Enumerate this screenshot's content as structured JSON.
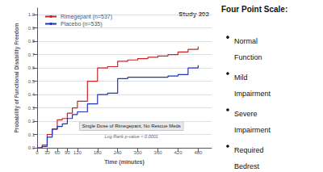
{
  "chart_data": {
    "type": "step",
    "xlabel": "Time (minutes)",
    "ylabel": "Probability of Functional Disability Freedom",
    "x": [
      0,
      15,
      30,
      45,
      60,
      75,
      90,
      105,
      120,
      150,
      180,
      210,
      240,
      270,
      300,
      330,
      360,
      390,
      420,
      450,
      480
    ],
    "series": [
      {
        "name": "Rimegepant (n=537)",
        "color": "#cc2222",
        "values": [
          0.0,
          0.02,
          0.1,
          0.14,
          0.21,
          0.22,
          0.26,
          0.3,
          0.35,
          0.5,
          0.6,
          0.61,
          0.65,
          0.66,
          0.67,
          0.68,
          0.69,
          0.7,
          0.72,
          0.74,
          0.76
        ]
      },
      {
        "name": "Placebo (n=535)",
        "color": "#2233bb",
        "values": [
          0.0,
          0.01,
          0.08,
          0.14,
          0.16,
          0.18,
          0.22,
          0.25,
          0.27,
          0.33,
          0.4,
          0.41,
          0.52,
          0.53,
          0.53,
          0.53,
          0.53,
          0.54,
          0.55,
          0.6,
          0.62
        ]
      }
    ],
    "xlim": [
      0,
      520
    ],
    "ylim": [
      0.0,
      1.05
    ],
    "xticks": [
      0,
      30,
      60,
      90,
      120,
      180,
      240,
      300,
      360,
      420,
      480
    ],
    "yticks": [
      {
        "value": 0.0,
        "label": "0.0"
      },
      0.1,
      0.2,
      0.3,
      0.4,
      0.5,
      0.6,
      0.7,
      0.8,
      0.9,
      {
        "value": 1.0,
        "label": "1.0"
      }
    ],
    "grid": true,
    "legend": "upper left",
    "annotations": [
      "Study 302",
      "Single Dose of Rimegepant, No Rescue Meds",
      "Log Rank p-value < 0.0001"
    ],
    "side_title": "Four Point Scale:",
    "side_items": [
      "Normal\nFunction",
      "Mild\nImpairment",
      "Severe\nImpairment",
      "Required\nBedrest"
    ]
  }
}
